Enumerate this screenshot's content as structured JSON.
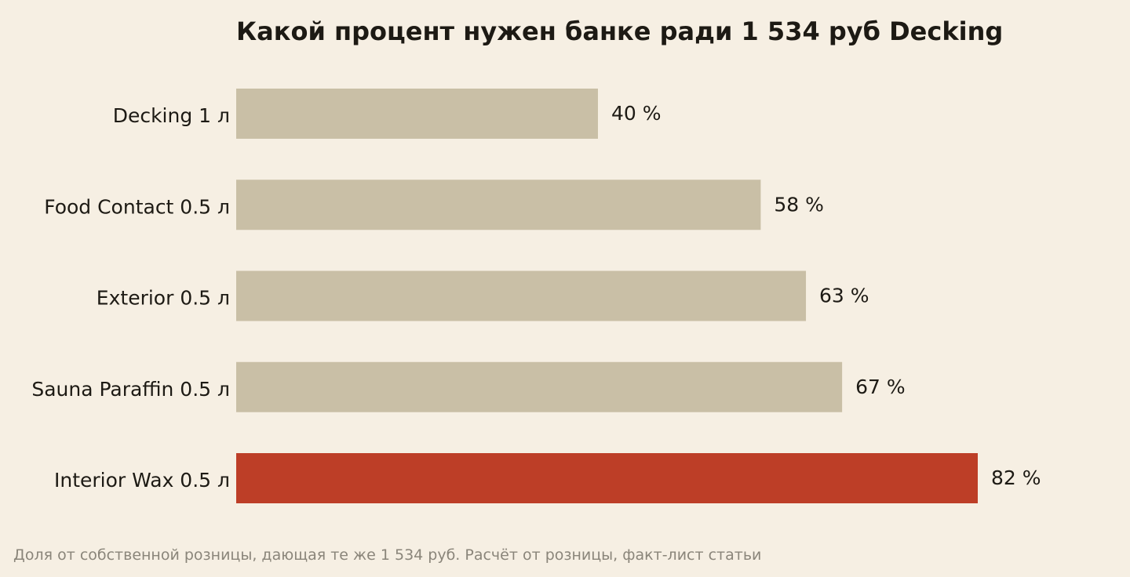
{
  "chart_data": {
    "type": "bar",
    "orientation": "horizontal",
    "title": "Какой процент нужен банке ради 1 534 руб Decking",
    "categories": [
      "Decking 1 л",
      "Food Contact 0.5 л",
      "Exterior 0.5 л",
      "Sauna Paraffin 0.5 л",
      "Interior Wax 0.5 л"
    ],
    "values": [
      40,
      58,
      63,
      67,
      82
    ],
    "value_labels": [
      "40 %",
      "58 %",
      "63 %",
      "67 %",
      "82 %"
    ],
    "highlight_index": 4,
    "xlim": [
      0,
      82
    ],
    "xlabel": "",
    "ylabel": "",
    "grid": false,
    "legend": "none"
  },
  "footnote": "Доля от собственной розницы, дающая те же 1 534 руб. Расчёт от розницы, факт-лист статьи",
  "colors": {
    "background": "#f6efe3",
    "bar": "#c9bfa6",
    "highlight": "#bd3e27",
    "text": "#1d1a14",
    "footnote": "#8a857a"
  }
}
